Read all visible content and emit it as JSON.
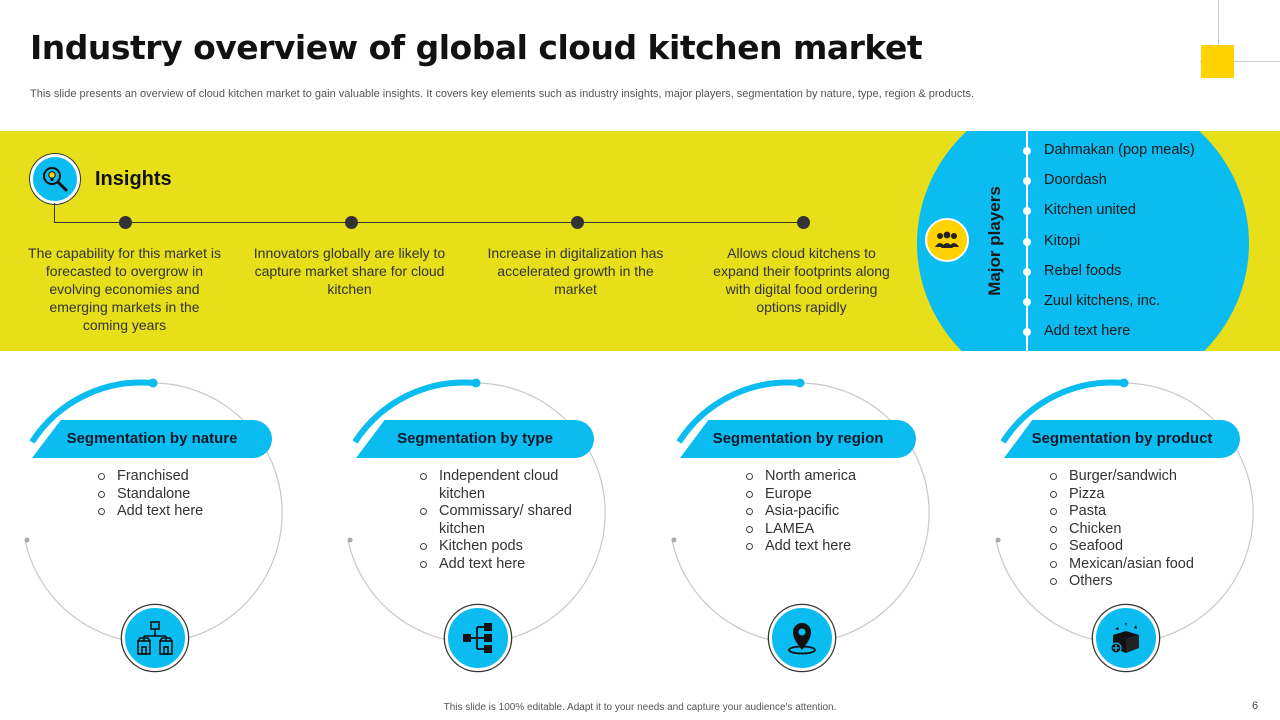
{
  "slide": {
    "title": "Industry overview of global cloud kitchen market",
    "subtitle": "This slide presents an overview of cloud kitchen market to gain valuable insights. It covers key elements such as industry insights, major players, segmentation by nature, type, region & products.",
    "footer": "This slide is 100% editable. Adapt it to your needs and capture your audience's attention.",
    "page_number": "6"
  },
  "colors": {
    "yellow": "#e6df19",
    "accent_yellow": "#ffd200",
    "blue": "#0bbcf0"
  },
  "insights": {
    "title": "Insights",
    "icon": "lightbulb-magnifier-icon",
    "items": [
      "The capability for this market is forecasted to overgrow in evolving economies and emerging markets in the coming years",
      "Innovators globally are likely to capture market share for cloud kitchen",
      "Increase in digitalization has accelerated growth in the market",
      "Allows cloud kitchens to expand their footprints along with digital food ordering options rapidly"
    ]
  },
  "major_players": {
    "title": "Major players",
    "icon": "team-icon",
    "items": [
      "Dahmakan (pop meals)",
      "Doordash",
      "Kitchen united",
      "Kitopi",
      "Rebel foods",
      "Zuul kitchens, inc.",
      "Add text here"
    ]
  },
  "segments": [
    {
      "title": "Segmentation by nature",
      "icon": "store-network-icon",
      "items": [
        "Franchised",
        "Standalone",
        "Add text here"
      ]
    },
    {
      "title": "Segmentation by type",
      "icon": "hierarchy-icon",
      "items": [
        "Independent cloud kitchen",
        "Commissary/ shared kitchen",
        "Kitchen pods",
        "Add text here"
      ]
    },
    {
      "title": "Segmentation by region",
      "icon": "location-pin-icon",
      "items": [
        "North america",
        "Europe",
        "Asia-pacific",
        "LAMEA",
        "Add text here"
      ]
    },
    {
      "title": "Segmentation by product",
      "icon": "product-box-icon",
      "items": [
        "Burger/sandwich",
        "Pizza",
        "Pasta",
        "Chicken",
        "Seafood",
        "Mexican/asian food",
        "Others"
      ]
    }
  ]
}
